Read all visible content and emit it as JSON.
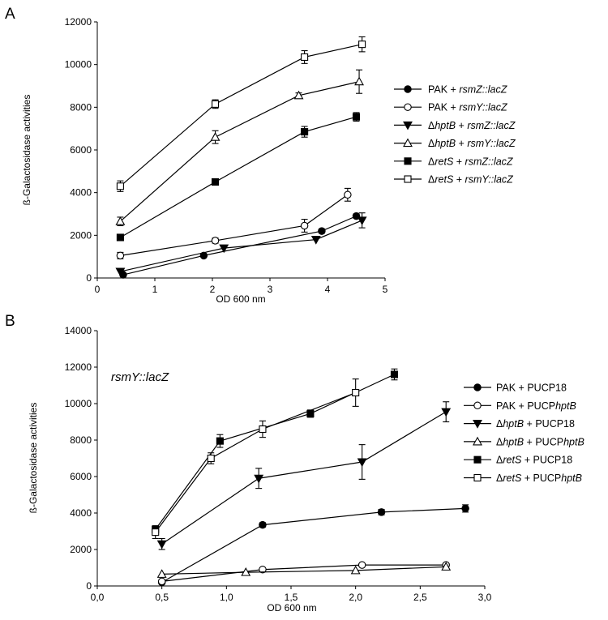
{
  "chart_data": [
    {
      "panel": "A",
      "type": "line",
      "annotation": "",
      "xlabel": "OD 600 nm",
      "ylabel": "ß-Galactosidase activities",
      "xlim": [
        0,
        5
      ],
      "ylim": [
        0,
        12000
      ],
      "xticks": [
        "0",
        "1",
        "2",
        "3",
        "4",
        "5"
      ],
      "yticks": [
        "0",
        "2000",
        "4000",
        "6000",
        "8000",
        "10000",
        "12000"
      ],
      "legend_position": "right",
      "series": [
        {
          "name_parts": [
            "PAK + ",
            "rsmZ::lacZ"
          ],
          "name_italic": [
            false,
            true
          ],
          "marker": "circle",
          "filled": true,
          "x": [
            0.45,
            1.85,
            3.9,
            4.5
          ],
          "y": [
            150,
            1050,
            2200,
            2900
          ],
          "err": [
            0,
            0,
            100,
            100
          ]
        },
        {
          "name_parts": [
            "PAK + ",
            "rsmY::lacZ"
          ],
          "name_italic": [
            false,
            true
          ],
          "marker": "circle",
          "filled": false,
          "x": [
            0.4,
            2.05,
            3.6,
            4.35
          ],
          "y": [
            1050,
            1750,
            2450,
            3900
          ],
          "err": [
            150,
            120,
            300,
            300
          ]
        },
        {
          "name_parts": [
            "Δ",
            "hptB",
            " + ",
            "rsmZ::lacZ"
          ],
          "name_italic": [
            false,
            true,
            false,
            true
          ],
          "marker": "triangle-down",
          "filled": true,
          "x": [
            0.4,
            2.2,
            3.8,
            4.6
          ],
          "y": [
            300,
            1400,
            1800,
            2700
          ],
          "err": [
            0,
            0,
            0,
            350
          ]
        },
        {
          "name_parts": [
            "Δ",
            "hptB",
            " + ",
            "rsmY::lacZ"
          ],
          "name_italic": [
            false,
            true,
            false,
            true
          ],
          "marker": "triangle-up",
          "filled": false,
          "x": [
            0.4,
            2.05,
            3.5,
            4.55
          ],
          "y": [
            2650,
            6600,
            8550,
            9200
          ],
          "err": [
            200,
            300,
            120,
            550
          ]
        },
        {
          "name_parts": [
            "Δ",
            "retS",
            " + ",
            "rsmZ::lacZ"
          ],
          "name_italic": [
            false,
            true,
            false,
            true
          ],
          "marker": "square",
          "filled": true,
          "x": [
            0.4,
            2.05,
            3.6,
            4.5
          ],
          "y": [
            1900,
            4500,
            6850,
            7550
          ],
          "err": [
            100,
            150,
            250,
            200
          ]
        },
        {
          "name_parts": [
            "Δ",
            "retS",
            " + ",
            "rsmY::lacZ"
          ],
          "name_italic": [
            false,
            true,
            false,
            true
          ],
          "marker": "square",
          "filled": false,
          "x": [
            0.4,
            2.05,
            3.6,
            4.6
          ],
          "y": [
            4300,
            8150,
            10350,
            10950
          ],
          "err": [
            250,
            200,
            300,
            350
          ]
        }
      ]
    },
    {
      "panel": "B",
      "type": "line",
      "annotation": "rsmY::lacZ",
      "xlabel": "OD 600 nm",
      "ylabel": "ß-Galactosidase activities",
      "xlim": [
        0,
        3
      ],
      "ylim": [
        0,
        14000
      ],
      "xticks": [
        "0,0",
        "0,5",
        "1,0",
        "1,5",
        "2,0",
        "2,5",
        "3,0"
      ],
      "yticks": [
        "0",
        "2000",
        "4000",
        "6000",
        "8000",
        "10000",
        "12000",
        "14000"
      ],
      "legend_position": "right",
      "series": [
        {
          "name_parts": [
            "PAK + PUCP18"
          ],
          "name_italic": [
            false
          ],
          "marker": "circle",
          "filled": true,
          "x": [
            0.5,
            1.28,
            2.2,
            2.85
          ],
          "y": [
            200,
            3350,
            4050,
            4250
          ],
          "err": [
            0,
            120,
            150,
            200
          ]
        },
        {
          "name_parts": [
            "PAK + PUCP",
            "hptB"
          ],
          "name_italic": [
            false,
            true
          ],
          "marker": "circle",
          "filled": false,
          "x": [
            0.5,
            1.28,
            2.05,
            2.7
          ],
          "y": [
            250,
            900,
            1150,
            1150
          ],
          "err": [
            0,
            0,
            0,
            0
          ]
        },
        {
          "name_parts": [
            "Δ",
            "hptB",
            " + PUCP18"
          ],
          "name_italic": [
            false,
            true,
            false
          ],
          "marker": "triangle-down",
          "filled": true,
          "x": [
            0.5,
            1.25,
            2.05,
            2.7
          ],
          "y": [
            2300,
            5900,
            6800,
            9550
          ],
          "err": [
            300,
            550,
            950,
            550
          ]
        },
        {
          "name_parts": [
            "Δ",
            "hptB",
            " + PUCP",
            "hptB"
          ],
          "name_italic": [
            false,
            true,
            false,
            true
          ],
          "marker": "triangle-up",
          "filled": false,
          "x": [
            0.5,
            1.15,
            2.0,
            2.7
          ],
          "y": [
            650,
            750,
            850,
            1050
          ],
          "err": [
            0,
            0,
            0,
            0
          ]
        },
        {
          "name_parts": [
            "Δ",
            "retS",
            " + PUCP18"
          ],
          "name_italic": [
            false,
            true,
            false
          ],
          "marker": "square",
          "filled": true,
          "x": [
            0.45,
            0.95,
            1.65,
            2.3
          ],
          "y": [
            3100,
            7950,
            9450,
            11600
          ],
          "err": [
            200,
            350,
            200,
            300
          ]
        },
        {
          "name_parts": [
            "Δ",
            "retS",
            " + PUCP",
            "hptB"
          ],
          "name_italic": [
            false,
            true,
            false,
            true
          ],
          "marker": "square",
          "filled": false,
          "x": [
            0.45,
            0.88,
            1.28,
            2.0
          ],
          "y": [
            2950,
            7000,
            8600,
            10600
          ],
          "err": [
            350,
            300,
            450,
            750
          ]
        }
      ]
    }
  ]
}
